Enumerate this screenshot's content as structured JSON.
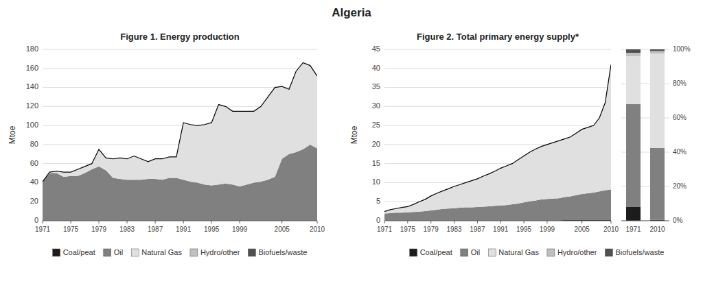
{
  "title": "Algeria",
  "chart_data": [
    {
      "type": "area",
      "title": "Figure 1. Energy production",
      "ylabel": "Mtoe",
      "stacked": true,
      "grid": true,
      "legend": "bottom",
      "x": [
        1971,
        1972,
        1973,
        1974,
        1975,
        1976,
        1977,
        1978,
        1979,
        1980,
        1981,
        1982,
        1983,
        1984,
        1985,
        1986,
        1987,
        1988,
        1989,
        1990,
        1991,
        1992,
        1993,
        1994,
        1995,
        1996,
        1997,
        1998,
        1999,
        2000,
        2001,
        2002,
        2003,
        2004,
        2005,
        2006,
        2007,
        2008,
        2009,
        2010
      ],
      "xlim": [
        1971,
        2010
      ],
      "xticks": [
        1971,
        1975,
        1979,
        1983,
        1987,
        1991,
        1995,
        1999,
        2005,
        2010
      ],
      "ylim": [
        0,
        180
      ],
      "yticks": [
        0,
        20,
        40,
        60,
        80,
        100,
        120,
        140,
        160,
        180
      ],
      "series": [
        {
          "name": "Coal/peat",
          "color": "#1c1c1c",
          "values": [
            0,
            0,
            0,
            0,
            0,
            0,
            0,
            0,
            0,
            0,
            0,
            0,
            0,
            0,
            0,
            0,
            0,
            0,
            0,
            0,
            0,
            0,
            0,
            0,
            0,
            0,
            0,
            0,
            0,
            0,
            0,
            0,
            0,
            0,
            0,
            0,
            0,
            0,
            0,
            0
          ]
        },
        {
          "name": "Oil",
          "color": "#808080",
          "values": [
            41,
            50,
            50,
            46,
            47,
            47,
            50,
            54,
            57,
            53,
            45,
            44,
            43,
            43,
            43,
            44,
            44,
            43,
            45,
            45,
            43,
            41,
            40,
            38,
            37,
            38,
            39,
            38,
            36,
            38,
            40,
            41,
            43,
            46,
            65,
            70,
            72,
            75,
            80,
            76
          ]
        },
        {
          "name": "Natural Gas",
          "color": "#e0e0e0",
          "values": [
            0,
            1,
            2,
            5,
            4,
            7,
            7,
            6,
            18,
            13,
            20,
            22,
            22,
            25,
            22,
            18,
            21,
            22,
            22,
            22,
            60,
            60,
            60,
            63,
            66,
            84,
            81,
            77,
            79,
            77,
            75,
            79,
            87,
            94,
            76,
            68,
            85,
            91,
            83,
            76
          ]
        },
        {
          "type": "line",
          "color": "black",
          "values": [
            41,
            51,
            52,
            51,
            51,
            54,
            57,
            60,
            75,
            66,
            65,
            66,
            65,
            68,
            65,
            62,
            65,
            65,
            67,
            67,
            103,
            101,
            100,
            101,
            103,
            122,
            120,
            115,
            115,
            115,
            115,
            120,
            130,
            140,
            141,
            138,
            157,
            166,
            163,
            152
          ]
        }
      ]
    },
    {
      "type": "area",
      "title": "Figure 2. Total primary energy supply*",
      "ylabel": "Mtoe",
      "stacked": true,
      "grid": true,
      "legend": "bottom",
      "x": [
        1971,
        1972,
        1973,
        1974,
        1975,
        1976,
        1977,
        1978,
        1979,
        1980,
        1981,
        1982,
        1983,
        1984,
        1985,
        1986,
        1987,
        1988,
        1989,
        1990,
        1991,
        1992,
        1993,
        1994,
        1995,
        1996,
        1997,
        1998,
        1999,
        2000,
        2001,
        2002,
        2003,
        2004,
        2005,
        2006,
        2007,
        2008,
        2009,
        2010
      ],
      "xlim": [
        1971,
        2010
      ],
      "xticks": [
        1971,
        1975,
        1979,
        1983,
        1987,
        1991,
        1995,
        1999,
        2005,
        2010
      ],
      "ylim": [
        0,
        45
      ],
      "yticks": [
        0,
        5,
        10,
        15,
        20,
        25,
        30,
        35,
        40,
        45
      ],
      "series": [
        {
          "name": "Coal/peat",
          "color": "#1c1c1c",
          "values": [
            0.1,
            0.1,
            0.1,
            0.1,
            0.1,
            0.1,
            0.1,
            0.1,
            0.1,
            0.1,
            0.1,
            0.1,
            0.1,
            0.1,
            0.1,
            0.1,
            0.1,
            0.1,
            0.1,
            0.1,
            0.1,
            0.1,
            0.1,
            0.1,
            0.1,
            0.1,
            0.1,
            0.1,
            0.1,
            0.1,
            0.1,
            0.2,
            0.2,
            0.2,
            0.2,
            0.2,
            0.2,
            0.2,
            0.2,
            0.2
          ]
        },
        {
          "name": "Oil",
          "color": "#808080",
          "values": [
            1.8,
            1.9,
            2.0,
            2.0,
            2.1,
            2.2,
            2.3,
            2.4,
            2.6,
            2.8,
            3.0,
            3.1,
            3.2,
            3.3,
            3.4,
            3.4,
            3.5,
            3.6,
            3.7,
            3.8,
            3.9,
            4.0,
            4.2,
            4.4,
            4.7,
            5.0,
            5.2,
            5.5,
            5.6,
            5.7,
            5.8,
            6.0,
            6.2,
            6.5,
            6.8,
            7.0,
            7.2,
            7.5,
            7.8,
            8.0
          ]
        },
        {
          "name": "Natural Gas",
          "color": "#e0e0e0",
          "values": [
            0.5,
            0.9,
            1.1,
            1.4,
            1.5,
            2.0,
            2.6,
            3.1,
            3.8,
            4.3,
            4.7,
            5.2,
            5.7,
            6.1,
            6.5,
            7.0,
            7.4,
            8.0,
            8.5,
            9.1,
            9.8,
            10.3,
            10.7,
            11.5,
            12.2,
            12.9,
            13.5,
            13.9,
            14.3,
            14.7,
            15.1,
            15.3,
            15.6,
            16.3,
            17.0,
            17.3,
            17.6,
            19.3,
            23.0,
            32.8
          ]
        },
        {
          "type": "line",
          "color": "black",
          "values": [
            2.4,
            2.9,
            3.2,
            3.5,
            3.7,
            4.3,
            5.0,
            5.6,
            6.5,
            7.2,
            7.8,
            8.4,
            9.0,
            9.5,
            10.0,
            10.5,
            11.0,
            11.7,
            12.3,
            13.0,
            13.8,
            14.4,
            15.0,
            16.0,
            17.0,
            18.0,
            18.8,
            19.5,
            20.0,
            20.5,
            21.0,
            21.5,
            22.0,
            23.0,
            24.0,
            24.5,
            25.0,
            27.0,
            31.0,
            41.0
          ]
        }
      ]
    },
    {
      "type": "bar",
      "stacked": true,
      "grid": true,
      "categories": [
        "1971",
        "2010"
      ],
      "ylim": [
        0,
        1
      ],
      "yticks": [
        {
          "value": 0,
          "label": "0%"
        },
        {
          "value": 0.2,
          "label": "20%"
        },
        {
          "value": 0.4,
          "label": "40%"
        },
        {
          "value": 0.6,
          "label": "60%"
        },
        {
          "value": 0.8,
          "label": "80%"
        },
        {
          "value": 1.0,
          "label": "100%"
        }
      ],
      "series": [
        {
          "name": "Coal/peat",
          "color": "#1c1c1c",
          "values": [
            0.08,
            0.005
          ]
        },
        {
          "name": "Oil",
          "color": "#808080",
          "values": [
            0.6,
            0.42
          ]
        },
        {
          "name": "Natural Gas",
          "color": "#e0e0e0",
          "values": [
            0.28,
            0.55
          ]
        },
        {
          "name": "Hydro/other",
          "color": "#c0c0c0",
          "values": [
            0.02,
            0.015
          ]
        },
        {
          "name": "Biofuels/waste",
          "color": "#505050",
          "values": [
            0.02,
            0.01
          ]
        }
      ]
    }
  ]
}
